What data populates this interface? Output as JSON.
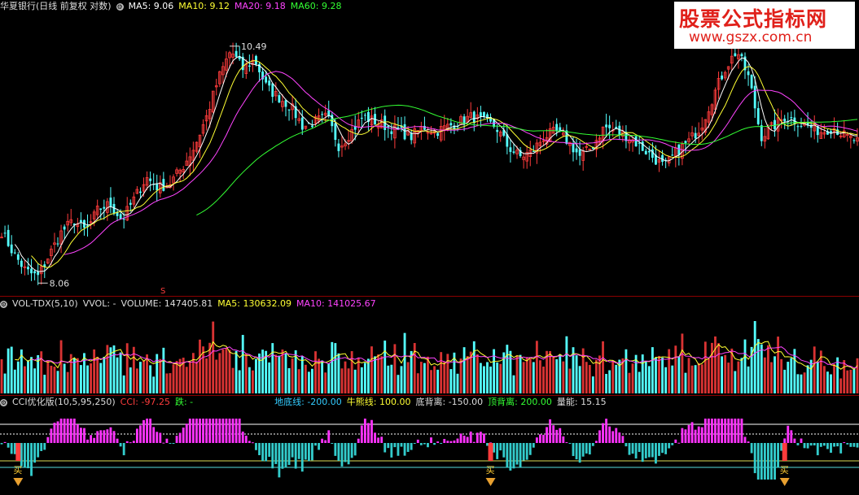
{
  "price_header": {
    "title": "华夏银行(日线 前复权 对数)",
    "ma5": "MA5: 9.06",
    "ma10": "MA10: 9.12",
    "ma20": "MA20: 9.18",
    "ma60": "MA60: 9.28",
    "high_label": "10.49",
    "low_label": "8.06",
    "signal_mark": "S"
  },
  "vol_header": {
    "name": "VOL-TDX(5,10)",
    "vvol": "VVOL: -",
    "volume": "VOLUME: 147405.81",
    "ma5": "MA5: 130632.09",
    "ma10": "MA10: 141025.67"
  },
  "cci_header": {
    "name": "CCI优化版(10,5,95,250)",
    "cci": "CCI: -97.25",
    "die": "跌: -",
    "didi": "地底线: -200.00",
    "niuneng": "牛熊线: 100.00",
    "dibei": "底背离: -150.00",
    "dingbei": "顶背离: 200.00",
    "liangneng": "量能: 15.15",
    "buy_label": "买"
  },
  "watermark": {
    "line1": "股票公式指标网",
    "line2": "www.gszx.com.cn"
  },
  "colors": {
    "up": "#ff3c3c",
    "down": "#54ffff",
    "ma5": "#ffffff",
    "ma10": "#ffff33",
    "ma20": "#ff44ff",
    "ma60": "#33ff33",
    "separator": "#8b0000",
    "cci_pos": "#ff33ff",
    "cci_neg": "#33cccc"
  },
  "chart_data": [
    {
      "type": "candlestick",
      "title": "华夏银行(日线 前复权 对数)",
      "series": [
        {
          "name": "MA5",
          "values": [
            9.06
          ]
        },
        {
          "name": "MA10",
          "values": [
            9.12
          ]
        },
        {
          "name": "MA20",
          "values": [
            9.18
          ]
        },
        {
          "name": "MA60",
          "values": [
            9.28
          ]
        }
      ],
      "annotations": [
        {
          "label": "10.49",
          "type": "high"
        },
        {
          "label": "8.06",
          "type": "low"
        }
      ],
      "scale": "log",
      "close_path": [
        8.5,
        8.3,
        8.15,
        8.1,
        8.3,
        8.5,
        8.6,
        8.5,
        8.7,
        8.75,
        8.6,
        8.8,
        9.0,
        8.9,
        8.95,
        9.1,
        9.3,
        9.6,
        10.0,
        10.3,
        10.1,
        10.2,
        9.9,
        9.8,
        9.7,
        9.5,
        9.55,
        9.6,
        9.3,
        9.45,
        9.6,
        9.55,
        9.5,
        9.45,
        9.4,
        9.5,
        9.45,
        9.5,
        9.55,
        9.6,
        9.55,
        9.5,
        9.3,
        9.2,
        9.25,
        9.4,
        9.45,
        9.35,
        9.2,
        9.3,
        9.5,
        9.45,
        9.4,
        9.3,
        9.2,
        9.1,
        9.25,
        9.35,
        9.5,
        9.8,
        10.1,
        10.3,
        10.0,
        9.4,
        9.5,
        9.6,
        9.55,
        9.5,
        9.45,
        9.5,
        9.4,
        9.35
      ]
    },
    {
      "type": "bar",
      "title": "VOL-TDX(5,10)",
      "series": [
        {
          "name": "VOLUME",
          "values": [
            147405.81
          ]
        },
        {
          "name": "MA5",
          "values": [
            130632.09
          ]
        },
        {
          "name": "MA10",
          "values": [
            141025.67
          ]
        }
      ]
    },
    {
      "type": "bar",
      "title": "CCI优化版(10,5,95,250)",
      "series": [
        {
          "name": "CCI",
          "values": [
            -97.25
          ]
        }
      ],
      "reference_lines": [
        {
          "name": "地底线",
          "value": -200.0
        },
        {
          "name": "牛熊线",
          "value": 100.0
        },
        {
          "name": "底背离",
          "value": -150.0
        },
        {
          "name": "顶背离",
          "value": 200.0
        }
      ],
      "extra": {
        "量能": 15.15
      }
    }
  ]
}
